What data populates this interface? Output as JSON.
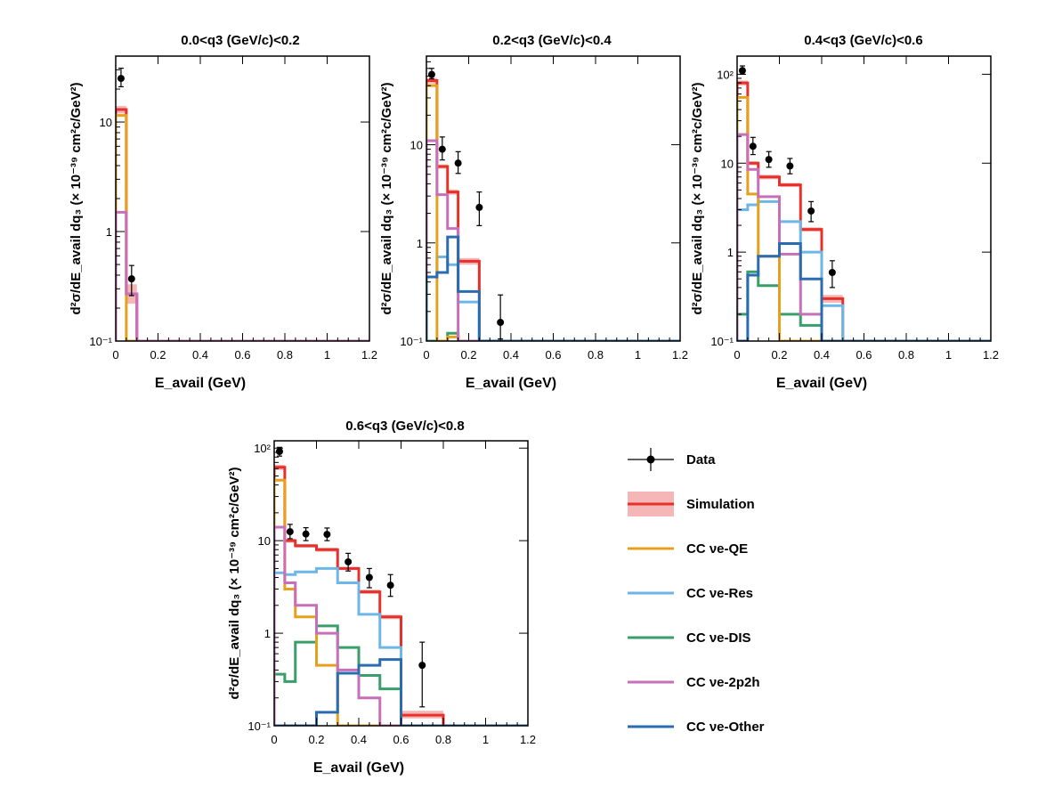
{
  "chart_data": {
    "type": "histogram-grid",
    "y_axis_label": "d²σ/dE_avail dq₃ (× 10⁻³⁹ cm²c/GeV²)",
    "x_axis_label": "E_avail (GeV)",
    "x_ticks": [
      "0",
      "0.2",
      "0.4",
      "0.6",
      "0.8",
      "1",
      "1.2"
    ],
    "xlim": [
      0,
      1.2
    ],
    "colors": {
      "simulation": "#e8302a",
      "simulation_band": "#f4b6b6",
      "qe": "#e5a01e",
      "res": "#6cb6e8",
      "dis": "#3a9e6a",
      "two_p2h": "#c76fb8",
      "other": "#2b6cb0",
      "data": "#000000"
    },
    "legend": {
      "data": "Data",
      "simulation": "Simulation",
      "qe": "CC νe-QE",
      "res": "CC νe-Res",
      "dis": "CC νe-DIS",
      "two_p2h": "CC νe-2p2h",
      "other": "CC νe-Other"
    },
    "panels": [
      {
        "title": "0.0<q3 (GeV/c)<0.2",
        "ylim": [
          0.1,
          40
        ],
        "y_tick_labels": [
          "10⁻¹",
          "1",
          "10"
        ],
        "bin_edges": [
          0,
          0.05,
          0.1,
          1.2
        ],
        "series": {
          "simulation": [
            13.0,
            0.27,
            0.1
          ],
          "qe": [
            11.5,
            0.1,
            0.1
          ],
          "two_p2h": [
            1.5,
            0.27,
            0.1
          ]
        },
        "band": {
          "lo": [
            12.0,
            0.22,
            0.1
          ],
          "hi": [
            14.0,
            0.33,
            0.1
          ]
        },
        "data": {
          "x": [
            0.025,
            0.075
          ],
          "y": [
            25.0,
            0.37
          ],
          "err_lo": [
            4.0,
            0.11
          ],
          "err_hi": [
            6.0,
            0.12
          ]
        }
      },
      {
        "title": "0.2<q3 (GeV/c)<0.4",
        "ylim": [
          0.1,
          80
        ],
        "y_tick_labels": [
          "10⁻¹",
          "1",
          "10"
        ],
        "bin_edges": [
          0,
          0.05,
          0.1,
          0.15,
          0.25,
          0.3,
          1.2
        ],
        "series": {
          "simulation": [
            45.0,
            6.0,
            3.3,
            0.65,
            0.1,
            0.1
          ],
          "qe": [
            40.0,
            0.1,
            0.11,
            0.1,
            0.1,
            0.1
          ],
          "res": [
            0.45,
            0.72,
            0.6,
            0.25,
            0.1,
            0.1
          ],
          "dis": [
            0.1,
            0.1,
            0.12,
            0.1,
            0.1,
            0.1
          ],
          "two_p2h": [
            11.0,
            3.1,
            1.4,
            0.1,
            0.1,
            0.1
          ],
          "other": [
            0.45,
            0.5,
            1.15,
            0.32,
            0.1,
            0.1
          ]
        },
        "band": {
          "lo": [
            42.0,
            5.7,
            3.1,
            0.6,
            0.1,
            0.1
          ],
          "hi": [
            48.0,
            6.3,
            3.5,
            0.7,
            0.1,
            0.1
          ]
        },
        "data": {
          "x": [
            0.025,
            0.075,
            0.15,
            0.25,
            0.35
          ],
          "y": [
            52.0,
            9.0,
            6.5,
            2.3,
            0.155
          ],
          "err_lo": [
            5.0,
            2.0,
            1.4,
            0.8,
            0.05
          ],
          "err_hi": [
            8.0,
            3.0,
            2.0,
            1.0,
            0.14
          ]
        }
      },
      {
        "title": "0.4<q3 (GeV/c)<0.6",
        "ylim": [
          0.1,
          160
        ],
        "y_tick_labels": [
          "10⁻¹",
          "1",
          "10",
          "10²"
        ],
        "bin_edges": [
          0,
          0.05,
          0.1,
          0.2,
          0.3,
          0.4,
          0.5,
          1.2
        ],
        "series": {
          "simulation": [
            80.0,
            10.0,
            7.0,
            5.7,
            1.8,
            0.3,
            0.1
          ],
          "qe": [
            55.0,
            4.5,
            0.9,
            0.1,
            0.1,
            0.1,
            0.1
          ],
          "res": [
            3.0,
            3.4,
            3.7,
            2.2,
            1.0,
            0.25,
            0.1
          ],
          "dis": [
            0.2,
            0.6,
            0.42,
            0.2,
            0.15,
            0.1,
            0.1
          ],
          "two_p2h": [
            21.0,
            8.5,
            4.2,
            0.95,
            0.2,
            0.1,
            0.1
          ],
          "other": [
            0.1,
            0.55,
            0.9,
            1.25,
            0.5,
            0.1,
            0.1
          ]
        },
        "band": {
          "lo": [
            75.0,
            9.5,
            6.6,
            5.4,
            1.7,
            0.27,
            0.1
          ],
          "hi": [
            85.0,
            10.5,
            7.4,
            6.0,
            1.9,
            0.33,
            0.1
          ]
        },
        "data": {
          "x": [
            0.025,
            0.075,
            0.15,
            0.25,
            0.35,
            0.45
          ],
          "y": [
            110.0,
            15.5,
            11.0,
            9.3,
            2.9,
            0.59
          ],
          "err_lo": [
            10.0,
            3.0,
            2.0,
            1.7,
            0.7,
            0.19
          ],
          "err_hi": [
            14.0,
            4.0,
            2.5,
            2.0,
            0.8,
            0.21
          ]
        }
      },
      {
        "title": "0.6<q3 (GeV/c)<0.8",
        "ylim": [
          0.1,
          120
        ],
        "y_tick_labels": [
          "10⁻¹",
          "1",
          "10",
          "10²"
        ],
        "bin_edges": [
          0,
          0.05,
          0.1,
          0.2,
          0.3,
          0.4,
          0.5,
          0.6,
          0.8,
          1.2
        ],
        "series": {
          "simulation": [
            62.0,
            10.0,
            8.8,
            8.0,
            5.0,
            2.8,
            1.5,
            0.13,
            0.1
          ],
          "qe": [
            45.0,
            3.0,
            1.5,
            0.45,
            0.1,
            0.1,
            0.1,
            0.1,
            0.1
          ],
          "res": [
            4.5,
            4.3,
            4.6,
            5.0,
            3.5,
            1.6,
            0.7,
            0.1,
            0.1
          ],
          "dis": [
            0.36,
            0.3,
            0.8,
            1.2,
            0.7,
            0.35,
            0.25,
            0.1,
            0.1
          ],
          "two_p2h": [
            14.0,
            3.5,
            2.0,
            1.0,
            0.4,
            0.2,
            0.1,
            0.1,
            0.1
          ],
          "other": [
            0.1,
            0.1,
            0.1,
            0.14,
            0.37,
            0.45,
            0.52,
            0.1,
            0.1
          ]
        },
        "band": {
          "lo": [
            58.0,
            9.5,
            8.4,
            7.6,
            4.8,
            2.65,
            1.42,
            0.12,
            0.1
          ],
          "hi": [
            66.0,
            10.5,
            9.2,
            8.4,
            5.2,
            2.95,
            1.58,
            0.145,
            0.1
          ]
        },
        "data": {
          "x": [
            0.025,
            0.075,
            0.15,
            0.25,
            0.35,
            0.45,
            0.55,
            0.7
          ],
          "y": [
            92.0,
            12.5,
            11.8,
            11.7,
            5.9,
            4.0,
            3.3,
            0.45
          ],
          "err_lo": [
            10.0,
            2.0,
            1.8,
            1.7,
            1.2,
            0.9,
            0.8,
            0.29
          ],
          "err_hi": [
            10.0,
            2.5,
            2.0,
            2.0,
            1.4,
            1.0,
            1.0,
            0.35
          ]
        }
      }
    ]
  }
}
